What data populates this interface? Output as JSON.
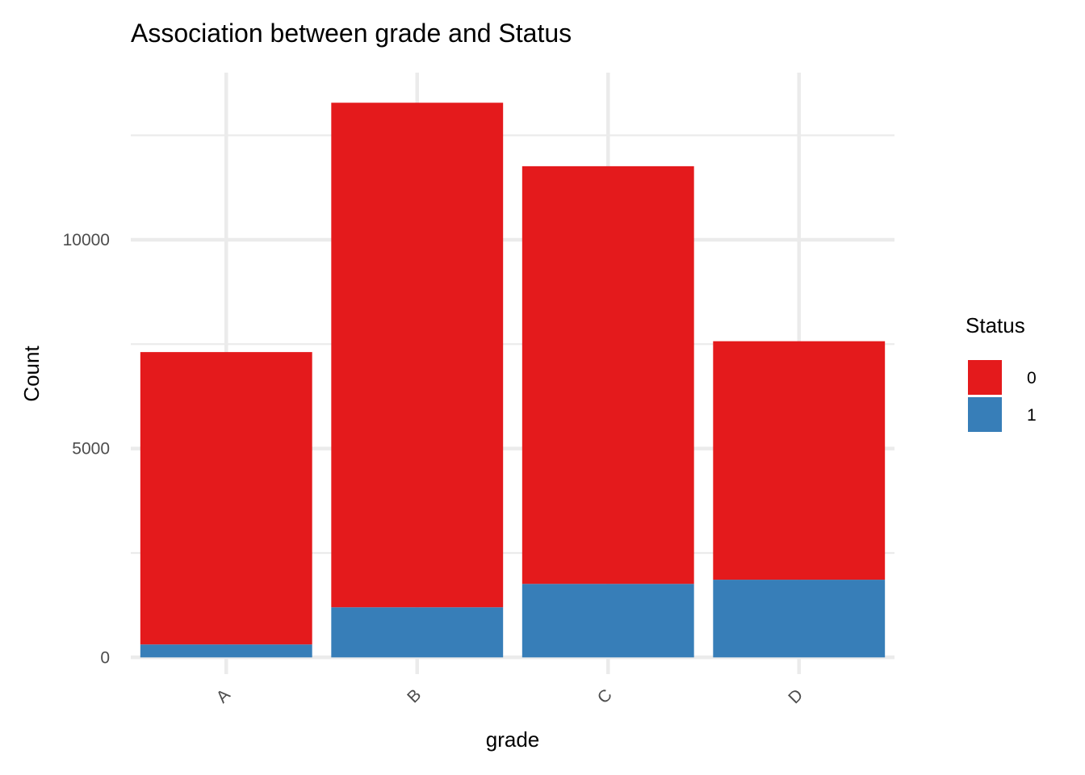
{
  "chart_data": {
    "type": "bar",
    "stacked": true,
    "title": "Association between grade and Status",
    "xlabel": "grade",
    "ylabel": "Count",
    "categories": [
      "A",
      "B",
      "C",
      "D"
    ],
    "series": [
      {
        "name": "0",
        "color": "#e41a1c",
        "values": [
          7000,
          12080,
          10000,
          5710
        ]
      },
      {
        "name": "1",
        "color": "#377eb8",
        "values": [
          310,
          1200,
          1760,
          1860
        ]
      }
    ],
    "yticks": [
      0,
      5000,
      10000
    ],
    "ylim": [
      -400,
      14000
    ],
    "grid": true,
    "legend": {
      "title": "Status",
      "position": "right",
      "entries": [
        "0",
        "1"
      ]
    }
  }
}
